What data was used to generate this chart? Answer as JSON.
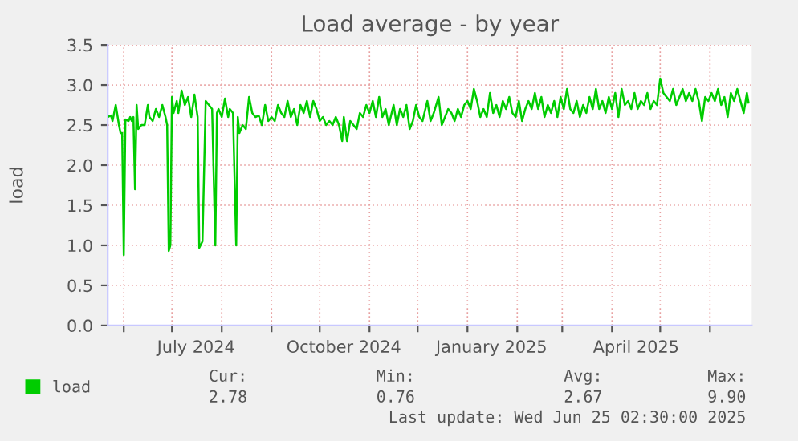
{
  "chart_data": {
    "type": "line",
    "title": "Load average - by year",
    "ylabel": "load",
    "x": [
      "2024-05-22",
      "2024-05-24",
      "2024-05-25",
      "2024-05-27",
      "2024-05-29",
      "2024-05-30",
      "2024-05-31",
      "2024-06-01",
      "2024-06-02",
      "2024-06-04",
      "2024-06-05",
      "2024-06-06",
      "2024-06-07",
      "2024-06-08",
      "2024-06-09",
      "2024-06-10",
      "2024-06-12",
      "2024-06-14",
      "2024-06-16",
      "2024-06-17",
      "2024-06-19",
      "2024-06-21",
      "2024-06-23",
      "2024-06-25",
      "2024-06-27",
      "2024-06-28",
      "2024-06-29",
      "2024-06-30",
      "2024-07-01",
      "2024-07-02",
      "2024-07-04",
      "2024-07-05",
      "2024-07-07",
      "2024-07-09",
      "2024-07-11",
      "2024-07-13",
      "2024-07-15",
      "2024-07-17",
      "2024-07-18",
      "2024-07-20",
      "2024-07-22",
      "2024-07-24",
      "2024-07-26",
      "2024-07-28",
      "2024-07-29",
      "2024-07-30",
      "2024-08-01",
      "2024-08-03",
      "2024-08-05",
      "2024-08-06",
      "2024-08-08",
      "2024-08-10",
      "2024-08-11",
      "2024-08-12",
      "2024-08-14",
      "2024-08-16",
      "2024-08-18",
      "2024-08-20",
      "2024-08-22",
      "2024-08-24",
      "2024-08-26",
      "2024-08-28",
      "2024-08-30",
      "2024-09-01",
      "2024-09-03",
      "2024-09-05",
      "2024-09-07",
      "2024-09-09",
      "2024-09-11",
      "2024-09-13",
      "2024-09-15",
      "2024-09-17",
      "2024-09-19",
      "2024-09-21",
      "2024-09-23",
      "2024-09-25",
      "2024-09-27",
      "2024-09-29",
      "2024-10-01",
      "2024-10-03",
      "2024-10-05",
      "2024-10-07",
      "2024-10-09",
      "2024-10-11",
      "2024-10-13",
      "2024-10-15",
      "2024-10-16",
      "2024-10-18",
      "2024-10-20",
      "2024-10-22",
      "2024-10-24",
      "2024-10-26",
      "2024-10-28",
      "2024-10-30",
      "2024-11-01",
      "2024-11-03",
      "2024-11-05",
      "2024-11-07",
      "2024-11-09",
      "2024-11-11",
      "2024-11-13",
      "2024-11-16",
      "2024-11-18",
      "2024-11-20",
      "2024-11-22",
      "2024-11-24",
      "2024-11-26",
      "2024-11-28",
      "2024-11-30",
      "2024-12-02",
      "2024-12-04",
      "2024-12-07",
      "2024-12-09",
      "2024-12-11",
      "2024-12-14",
      "2024-12-16",
      "2024-12-18",
      "2024-12-20",
      "2024-12-22",
      "2024-12-24",
      "2024-12-26",
      "2024-12-28",
      "2024-12-30",
      "2025-01-01",
      "2025-01-03",
      "2025-01-05",
      "2025-01-07",
      "2025-01-09",
      "2025-01-11",
      "2025-01-13",
      "2025-01-15",
      "2025-01-17",
      "2025-01-19",
      "2025-01-21",
      "2025-01-23",
      "2025-01-25",
      "2025-01-27",
      "2025-01-29",
      "2025-01-31",
      "2025-02-02",
      "2025-02-04",
      "2025-02-06",
      "2025-02-08",
      "2025-02-10",
      "2025-02-12",
      "2025-02-14",
      "2025-02-16",
      "2025-02-18",
      "2025-02-20",
      "2025-02-22",
      "2025-02-24",
      "2025-02-26",
      "2025-02-28",
      "2025-03-02",
      "2025-03-04",
      "2025-03-06",
      "2025-03-08",
      "2025-03-10",
      "2025-03-12",
      "2025-03-14",
      "2025-03-16",
      "2025-03-18",
      "2025-03-20",
      "2025-03-22",
      "2025-03-24",
      "2025-03-26",
      "2025-03-28",
      "2025-03-30",
      "2025-04-01",
      "2025-04-03",
      "2025-04-05",
      "2025-04-07",
      "2025-04-09",
      "2025-04-11",
      "2025-04-13",
      "2025-04-15",
      "2025-04-17",
      "2025-04-19",
      "2025-04-21",
      "2025-04-23",
      "2025-04-25",
      "2025-04-27",
      "2025-04-29",
      "2025-05-01",
      "2025-05-03",
      "2025-05-05",
      "2025-05-07",
      "2025-05-09",
      "2025-05-11",
      "2025-05-13",
      "2025-05-15",
      "2025-05-17",
      "2025-05-19",
      "2025-05-21",
      "2025-05-23",
      "2025-05-25",
      "2025-05-27",
      "2025-05-29",
      "2025-05-31",
      "2025-06-02",
      "2025-06-04",
      "2025-06-06",
      "2025-06-08",
      "2025-06-10",
      "2025-06-12",
      "2025-06-14",
      "2025-06-16",
      "2025-06-18",
      "2025-06-20",
      "2025-06-22",
      "2025-06-24",
      "2025-06-25"
    ],
    "series": [
      {
        "name": "load",
        "color": "#00cc00",
        "values": [
          2.6,
          2.62,
          2.55,
          2.75,
          2.5,
          2.4,
          2.4,
          0.88,
          2.57,
          2.55,
          2.6,
          2.55,
          2.6,
          1.7,
          2.75,
          2.45,
          2.5,
          2.5,
          2.75,
          2.6,
          2.55,
          2.7,
          2.6,
          2.75,
          2.6,
          2.5,
          0.93,
          1.0,
          2.85,
          2.65,
          2.8,
          2.65,
          2.93,
          2.75,
          2.85,
          2.6,
          2.88,
          2.6,
          0.97,
          1.05,
          2.8,
          2.75,
          2.7,
          1.0,
          2.65,
          2.7,
          2.6,
          2.83,
          2.6,
          2.7,
          2.65,
          1.0,
          2.6,
          2.4,
          2.5,
          2.45,
          2.85,
          2.65,
          2.6,
          2.62,
          2.5,
          2.75,
          2.55,
          2.6,
          2.55,
          2.75,
          2.65,
          2.6,
          2.8,
          2.6,
          2.7,
          2.5,
          2.75,
          2.65,
          2.8,
          2.6,
          2.8,
          2.7,
          2.55,
          2.6,
          2.5,
          2.55,
          2.5,
          2.6,
          2.5,
          2.3,
          2.6,
          2.3,
          2.55,
          2.5,
          2.45,
          2.65,
          2.6,
          2.75,
          2.65,
          2.8,
          2.6,
          2.85,
          2.6,
          2.7,
          2.5,
          2.75,
          2.5,
          2.7,
          2.6,
          2.75,
          2.45,
          2.55,
          2.75,
          2.6,
          2.55,
          2.8,
          2.55,
          2.65,
          2.85,
          2.5,
          2.6,
          2.7,
          2.65,
          2.55,
          2.7,
          2.6,
          2.75,
          2.8,
          2.7,
          2.95,
          2.8,
          2.6,
          2.7,
          2.6,
          2.9,
          2.65,
          2.75,
          2.6,
          2.8,
          2.7,
          2.85,
          2.65,
          2.6,
          2.8,
          2.55,
          2.7,
          2.8,
          2.7,
          2.9,
          2.7,
          2.85,
          2.6,
          2.75,
          2.65,
          2.8,
          2.6,
          2.85,
          2.7,
          2.95,
          2.7,
          2.65,
          2.8,
          2.6,
          2.75,
          2.65,
          2.85,
          2.7,
          2.95,
          2.7,
          2.8,
          2.65,
          2.85,
          2.7,
          2.9,
          2.6,
          2.95,
          2.75,
          2.8,
          2.7,
          2.9,
          2.7,
          2.8,
          2.75,
          2.9,
          2.7,
          2.8,
          2.75,
          3.08,
          2.9,
          2.85,
          2.8,
          2.95,
          2.75,
          2.85,
          2.95,
          2.8,
          2.9,
          2.8,
          2.95,
          2.8,
          2.55,
          2.85,
          2.8,
          2.9,
          2.8,
          2.95,
          2.75,
          2.85,
          2.6,
          2.9,
          2.8,
          2.95,
          2.8,
          2.65,
          2.9,
          2.78
        ]
      }
    ],
    "xlim": [
      "2024-05-22",
      "2025-06-27"
    ],
    "xticks": [
      {
        "value": "2024-06-01",
        "label": null
      },
      {
        "value": "2024-07-01",
        "label": null
      },
      {
        "value": "2024-07-16",
        "label": "July 2024"
      },
      {
        "value": "2024-08-01",
        "label": null
      },
      {
        "value": "2024-09-01",
        "label": null
      },
      {
        "value": "2024-10-01",
        "label": null
      },
      {
        "value": "2024-10-16",
        "label": "October 2024"
      },
      {
        "value": "2024-11-01",
        "label": null
      },
      {
        "value": "2024-12-01",
        "label": null
      },
      {
        "value": "2025-01-01",
        "label": null
      },
      {
        "value": "2025-01-16",
        "label": "January 2025"
      },
      {
        "value": "2025-02-01",
        "label": null
      },
      {
        "value": "2025-03-01",
        "label": null
      },
      {
        "value": "2025-04-01",
        "label": null
      },
      {
        "value": "2025-04-16",
        "label": "April 2025"
      },
      {
        "value": "2025-05-01",
        "label": null
      },
      {
        "value": "2025-06-01",
        "label": null
      }
    ],
    "ylim": [
      0,
      3.5
    ],
    "yticks": [
      {
        "value": 0,
        "label": "0.0"
      },
      {
        "value": 0.5,
        "label": "0.5"
      },
      {
        "value": 1,
        "label": "1.0"
      },
      {
        "value": 1.5,
        "label": "1.5"
      },
      {
        "value": 2,
        "label": "2.0"
      },
      {
        "value": 2.5,
        "label": "2.5"
      },
      {
        "value": 3,
        "label": "3.0"
      },
      {
        "value": 3.5,
        "label": "3.5"
      }
    ],
    "grid": true,
    "legend": "bottom left",
    "marker": "none",
    "line_style": "solid",
    "annotations": [
      "Cur:",
      "2.78",
      "Min:",
      "0.76",
      "Avg:",
      "2.67",
      "Max:",
      "9.90",
      "Last update: Wed Jun 25 02:30:00 2025"
    ]
  }
}
